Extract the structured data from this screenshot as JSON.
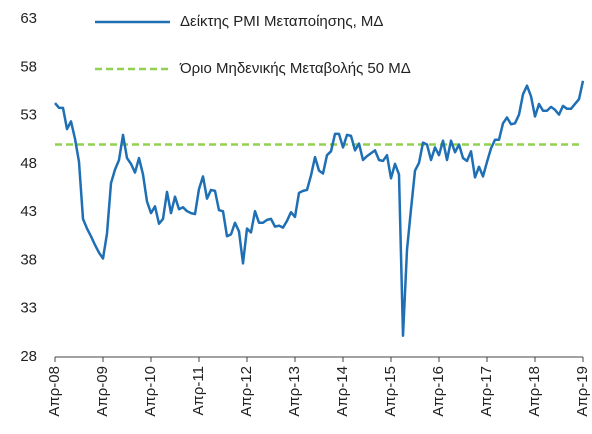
{
  "chart_data": {
    "type": "line",
    "categories": [
      "Απρ-08",
      null,
      null,
      null,
      null,
      null,
      null,
      null,
      null,
      null,
      null,
      null,
      "Απρ-09",
      null,
      null,
      null,
      null,
      null,
      null,
      null,
      null,
      null,
      null,
      null,
      "Απρ-10",
      null,
      null,
      null,
      null,
      null,
      null,
      null,
      null,
      null,
      null,
      null,
      "Απρ-11",
      null,
      null,
      null,
      null,
      null,
      null,
      null,
      null,
      null,
      null,
      null,
      "Απρ-12",
      null,
      null,
      null,
      null,
      null,
      null,
      null,
      null,
      null,
      null,
      null,
      "Απρ-13",
      null,
      null,
      null,
      null,
      null,
      null,
      null,
      null,
      null,
      null,
      null,
      "Απρ-14",
      null,
      null,
      null,
      null,
      null,
      null,
      null,
      null,
      null,
      null,
      null,
      "Απρ-15",
      null,
      null,
      null,
      null,
      null,
      null,
      null,
      null,
      null,
      null,
      null,
      "Απρ-16",
      null,
      null,
      null,
      null,
      null,
      null,
      null,
      null,
      null,
      null,
      null,
      "Απρ-17",
      null,
      null,
      null,
      null,
      null,
      null,
      null,
      null,
      null,
      null,
      null,
      "Απρ-18",
      null,
      null,
      null,
      null,
      null,
      null,
      null,
      null,
      null,
      null,
      null,
      "Απρ-19"
    ],
    "series": [
      {
        "name": "Δείκτης PMI Μεταποίησης, ΜΔ",
        "color": "#1f6fb5",
        "values": [
          54.3,
          53.8,
          53.8,
          51.6,
          52.4,
          50.6,
          48.2,
          42.3,
          41.3,
          40.5,
          39.6,
          38.8,
          38.2,
          40.8,
          46.0,
          47.4,
          48.4,
          51.0,
          48.6,
          48.0,
          47.1,
          48.6,
          46.9,
          44.1,
          42.9,
          43.6,
          41.8,
          42.3,
          45.1,
          42.9,
          44.6,
          43.3,
          43.5,
          43.1,
          42.9,
          42.8,
          45.4,
          46.7,
          44.4,
          45.3,
          45.2,
          43.2,
          43.1,
          40.5,
          40.7,
          41.9,
          41.0,
          37.7,
          41.3,
          40.9,
          43.1,
          41.9,
          41.9,
          42.2,
          42.3,
          41.5,
          41.6,
          41.4,
          42.1,
          43.0,
          42.5,
          45.0,
          45.2,
          45.3,
          46.8,
          48.7,
          47.3,
          47.0,
          48.9,
          49.3,
          51.1,
          51.1,
          49.7,
          51.0,
          50.9,
          49.4,
          50.1,
          48.4,
          48.8,
          49.1,
          49.4,
          48.4,
          48.3,
          48.9,
          46.5,
          48.0,
          46.9,
          30.2,
          39.1,
          43.3,
          47.3,
          48.1,
          50.2,
          50.0,
          48.4,
          49.7,
          48.9,
          50.4,
          48.4,
          50.4,
          49.2,
          50.0,
          48.6,
          48.3,
          49.3,
          46.6,
          47.7,
          46.7,
          48.2,
          49.6,
          50.5,
          50.5,
          52.2,
          52.8,
          52.1,
          52.2,
          53.1,
          55.2,
          56.1,
          55.0,
          52.9,
          54.2,
          53.5,
          53.5,
          53.9,
          53.6,
          53.1,
          54.0,
          53.7,
          53.7,
          54.2,
          54.7,
          56.6
        ]
      }
    ],
    "reference_lines": [
      {
        "name": "Όριο Μηδενικής Μεταβολής 50 ΜΔ",
        "value": 50,
        "color": "#92d050",
        "style": "dashed"
      }
    ],
    "ylim": [
      28,
      63
    ],
    "yticks": [
      28,
      33,
      38,
      43,
      48,
      53,
      58,
      63
    ],
    "grid": false
  }
}
